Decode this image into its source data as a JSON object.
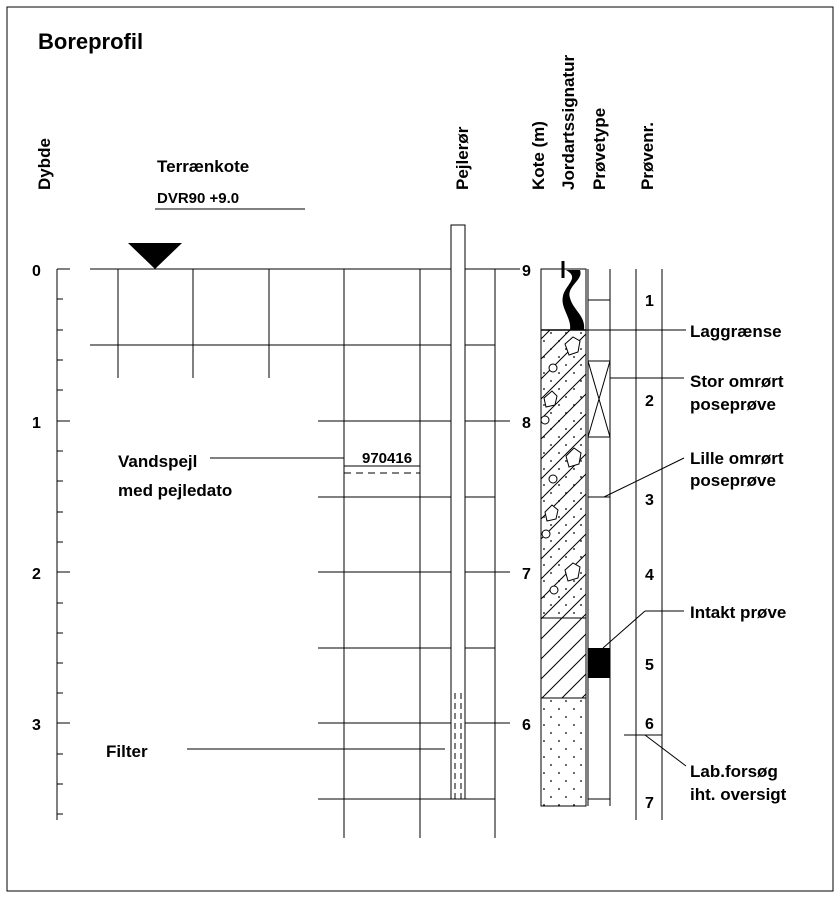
{
  "title": "Boreprofil",
  "headers": {
    "depth": "Dybde",
    "pipe": "Pejlerør",
    "elevation": "Kote (m)",
    "soil": "Jordartssignatur",
    "sample_type": "Prøvetype",
    "sample_no": "Prøvenr."
  },
  "terrain": {
    "label": "Terrænkote",
    "datum": "DVR90 +9.0"
  },
  "depth_ticks": [
    "0",
    "1",
    "2",
    "3"
  ],
  "elevation_ticks": [
    "9",
    "8",
    "7",
    "6"
  ],
  "water_table": {
    "line1": "Vandspejl",
    "line2": "med pejledato",
    "date": "970416"
  },
  "filter_label": "Filter",
  "sample_numbers": [
    "1",
    "2",
    "3",
    "4",
    "5",
    "6",
    "7"
  ],
  "legend": {
    "layer_boundary": "Laggrænse",
    "large_bag_1": "Stor omrørt",
    "large_bag_2": "poseprøve",
    "small_bag_1": "Lille omrørt",
    "small_bag_2": "poseprøve",
    "intact": "Intakt prøve",
    "lab_1": "Lab.forsøg",
    "lab_2": "iht. oversigt"
  }
}
